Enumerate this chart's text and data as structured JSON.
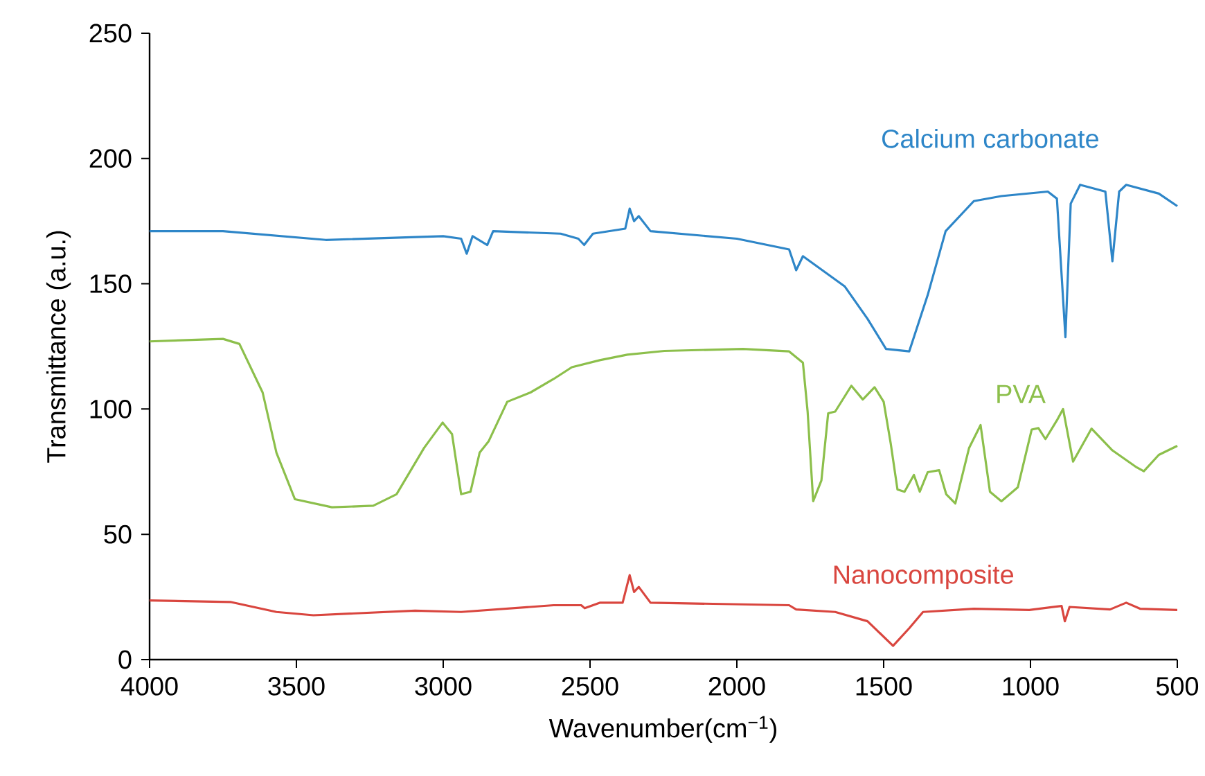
{
  "chart_data": {
    "type": "line",
    "xlabel": "Wavenumber(cm$^{−1}$)",
    "ylabel": "Transmittance (a.u.)",
    "xlim": [
      4000,
      500
    ],
    "xticks": [
      4000,
      3500,
      3000,
      2500,
      2000,
      1500,
      1000,
      500
    ],
    "ylim": [
      0,
      250
    ],
    "yticks": [
      0,
      50,
      100,
      150,
      200,
      250
    ],
    "grid": false,
    "legend": false,
    "marker": "none",
    "line_style": "solid",
    "series": [
      {
        "name": "Calcium carbonate",
        "color": "#2e86c8",
        "x": [
          4000,
          3750,
          3400,
          3000,
          2939,
          2920,
          2900,
          2850,
          2830,
          2600,
          2540,
          2520,
          2490,
          2380,
          2365,
          2350,
          2334,
          2294,
          2000,
          1822,
          1798,
          1775,
          1633,
          1555,
          1492,
          1413,
          1350,
          1289,
          1193,
          1099,
          941,
          910,
          881,
          863,
          831,
          745,
          721,
          698,
          674,
          563,
          500
        ],
        "values": [
          171,
          171,
          167.5,
          169,
          168,
          162,
          169,
          165.5,
          171,
          170,
          168,
          165.5,
          170,
          172,
          180,
          175,
          177,
          171,
          168,
          163.7,
          155.4,
          161,
          149,
          136,
          124,
          123,
          145.5,
          171,
          183,
          185,
          186.8,
          184,
          128.7,
          182,
          189.5,
          186.8,
          159,
          186.8,
          189.5,
          186,
          181
        ]
      },
      {
        "name": "PVA",
        "color": "#8cbf4b",
        "x": [
          4000,
          3750,
          3694,
          3615,
          3568,
          3505,
          3379,
          3238,
          3159,
          3065,
          3002,
          2970,
          2939,
          2907,
          2876,
          2845,
          2782,
          2703,
          2624,
          2562,
          2467,
          2373,
          2247,
          1979,
          1822,
          1775,
          1759,
          1740,
          1712,
          1689,
          1665,
          1610,
          1571,
          1531,
          1500,
          1476,
          1453,
          1429,
          1397,
          1377,
          1350,
          1311,
          1287,
          1256,
          1209,
          1170,
          1138,
          1099,
          1043,
          996,
          973,
          949,
          910,
          889,
          855,
          792,
          721,
          642,
          614,
          563,
          500
        ],
        "values": [
          127,
          128,
          126,
          106.6,
          82.6,
          64,
          60.8,
          61.4,
          66,
          84.5,
          94.6,
          90,
          66,
          67,
          82.6,
          87.2,
          102.9,
          106.6,
          112,
          116.7,
          119.5,
          121.7,
          123.2,
          124,
          123,
          118.5,
          99,
          63.2,
          71.5,
          98.3,
          99,
          109.3,
          103.8,
          108.7,
          102.9,
          86.3,
          67.9,
          67,
          73.7,
          67,
          74.8,
          75.6,
          66,
          62.3,
          84.5,
          93.6,
          67,
          63.2,
          68.8,
          91.8,
          92.4,
          88,
          95.5,
          100,
          79,
          92.2,
          83.5,
          77,
          75.2,
          81.7,
          85.3
        ]
      },
      {
        "name": "Nanocomposite",
        "color": "#d9463f",
        "x": [
          4000,
          3725,
          3568,
          3442,
          3096,
          2939,
          2624,
          2530,
          2518,
          2467,
          2389,
          2365,
          2350,
          2334,
          2294,
          1822,
          1798,
          1665,
          1555,
          1468,
          1413,
          1366,
          1193,
          1004,
          894,
          883,
          867,
          729,
          674,
          627,
          500
        ],
        "values": [
          23.6,
          23,
          19,
          17.7,
          19.5,
          19,
          21.7,
          21.7,
          20.5,
          22.7,
          22.7,
          33.7,
          27,
          29,
          22.7,
          21.7,
          20,
          19,
          15.3,
          5.5,
          12.5,
          19,
          20.3,
          19.8,
          21.4,
          15.3,
          21,
          20,
          22.7,
          20.3,
          19.8
        ]
      }
    ]
  }
}
